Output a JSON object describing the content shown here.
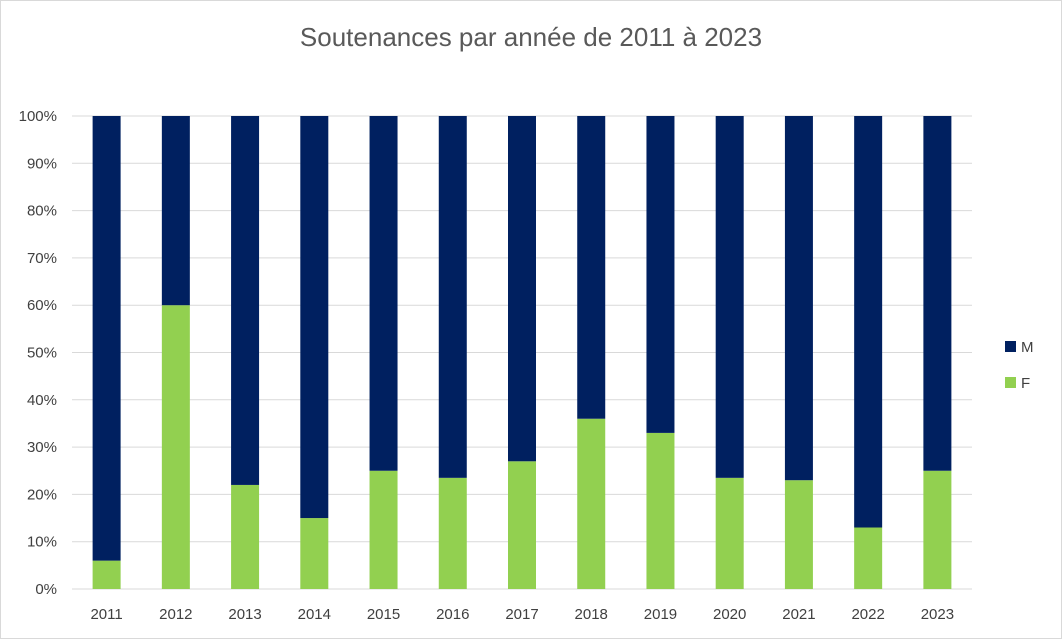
{
  "chart_data": {
    "type": "bar",
    "stacked": "percent",
    "title": "Soutenances par année de 2011 à 2023",
    "xlabel": "",
    "ylabel": "",
    "categories": [
      "2011",
      "2012",
      "2013",
      "2014",
      "2015",
      "2016",
      "2017",
      "2018",
      "2019",
      "2020",
      "2021",
      "2022",
      "2023"
    ],
    "series": [
      {
        "name": "F",
        "color": "#92d050",
        "values": [
          6,
          60,
          22,
          15,
          25,
          23.5,
          27,
          36,
          33,
          23.5,
          23,
          13,
          25
        ]
      },
      {
        "name": "M",
        "color": "#002060",
        "values": [
          94,
          40,
          78,
          85,
          75,
          76.5,
          73,
          64,
          67,
          76.5,
          77,
          87,
          75
        ]
      }
    ],
    "ylim": [
      0,
      100
    ],
    "yticks": [
      "0%",
      "10%",
      "20%",
      "30%",
      "40%",
      "50%",
      "60%",
      "70%",
      "80%",
      "90%",
      "100%"
    ],
    "grid": true,
    "legend": {
      "placement": "right",
      "order": [
        "M",
        "F"
      ]
    },
    "gridline_color": "#d9d9d9"
  }
}
